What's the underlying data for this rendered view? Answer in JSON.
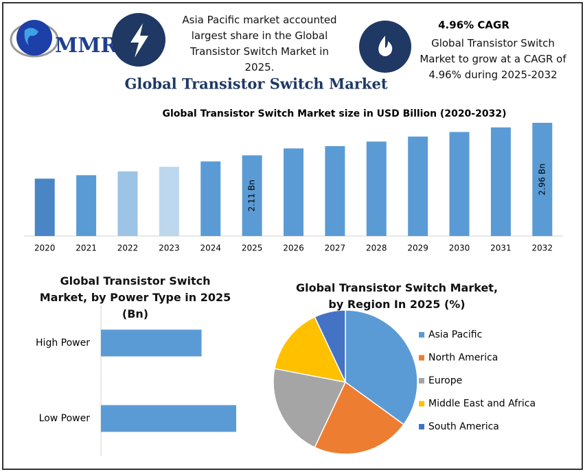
{
  "header": {
    "logo_text": "MMR",
    "note_left": "Asia Pacific market accounted largest share in the Global Transistor Switch Market in 2025.",
    "cagr_title": "4.96% CAGR",
    "cagr_text": "Global Transistor Switch Market to grow at a CAGR of 4.96% during 2025-2032",
    "title": "Global Transistor Switch Market"
  },
  "chart_data": [
    {
      "type": "bar",
      "title": "Global Transistor Switch Market size in USD Billion (2020-2032)",
      "categories": [
        "2020",
        "2021",
        "2022",
        "2023",
        "2024",
        "2025",
        "2026",
        "2027",
        "2028",
        "2029",
        "2030",
        "2031",
        "2032"
      ],
      "values": [
        1.5,
        1.59,
        1.69,
        1.81,
        1.95,
        2.11,
        2.29,
        2.35,
        2.47,
        2.6,
        2.72,
        2.84,
        2.96
      ],
      "value_labels": [
        null,
        null,
        null,
        null,
        null,
        "2.11 Bn",
        null,
        null,
        null,
        null,
        null,
        null,
        "2.96 Bn"
      ],
      "colors": [
        "#4a86c5",
        "#5b9bd5",
        "#9dc3e6",
        "#bdd7ee",
        "#5b9bd5",
        "#5b9bd5",
        "#5b9bd5",
        "#5b9bd5",
        "#5b9bd5",
        "#5b9bd5",
        "#5b9bd5",
        "#5b9bd5",
        "#5b9bd5"
      ]
    },
    {
      "type": "hbar",
      "title": "Global Transistor Switch Market, by Power Type in 2025 (Bn)",
      "categories": [
        "High Power",
        "Low Power"
      ],
      "values": [
        0.9,
        1.21
      ],
      "color": "#5b9bd5"
    },
    {
      "type": "pie",
      "title": "Global Transistor Switch Market, by Region In 2025 (%)",
      "categories": [
        "Asia Pacific",
        "North America",
        "Europe",
        "Middle East and Africa",
        "South America"
      ],
      "values": [
        35,
        22,
        21,
        15,
        7
      ],
      "colors": [
        "#5b9bd5",
        "#ed7d31",
        "#a5a5a5",
        "#ffc000",
        "#4472c4"
      ],
      "legend": "right"
    }
  ]
}
